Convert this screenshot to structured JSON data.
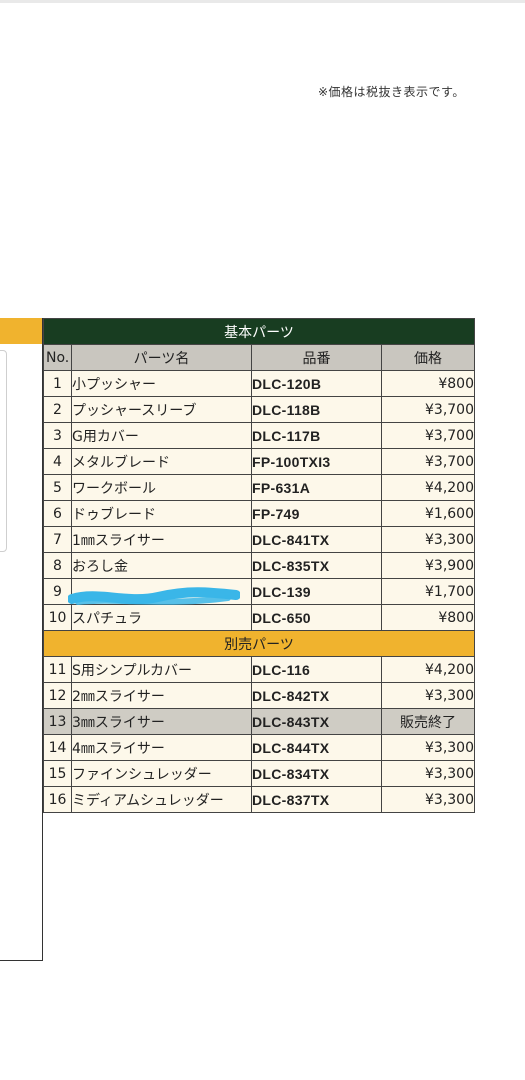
{
  "tax_note": "※価格は税抜き表示です。",
  "sections": {
    "basic": "基本パーツ",
    "optional": "別売パーツ"
  },
  "headers": {
    "no": "No.",
    "name": "パーツ名",
    "code": "品番",
    "price": "価格"
  },
  "basic_items": [
    {
      "no": "1",
      "name": "小プッシャー",
      "code": "DLC-120B",
      "price": "¥800"
    },
    {
      "no": "2",
      "name": "プッシャースリーブ",
      "code": "DLC-118B",
      "price": "¥3,700"
    },
    {
      "no": "3",
      "name": "G用カバー",
      "code": "DLC-117B",
      "price": "¥3,700"
    },
    {
      "no": "4",
      "name": "メタルブレード",
      "code": "FP-100TXI3",
      "price": "¥3,700"
    },
    {
      "no": "5",
      "name": "ワークボール",
      "code": "FP-631A",
      "price": "¥4,200"
    },
    {
      "no": "6",
      "name": "ドゥブレード",
      "code": "FP-749",
      "price": "¥1,600"
    },
    {
      "no": "7",
      "name": "1㎜スライサー",
      "code": "DLC-841TX",
      "price": "¥3,300"
    },
    {
      "no": "8",
      "name": "おろし金",
      "code": "DLC-835TX",
      "price": "¥3,900"
    },
    {
      "no": "9",
      "name": "",
      "code": "DLC-139",
      "price": "¥1,700"
    },
    {
      "no": "10",
      "name": "スパチュラ",
      "code": "DLC-650",
      "price": "¥800"
    }
  ],
  "optional_items": [
    {
      "no": "11",
      "name": "S用シンプルカバー",
      "code": "DLC-116",
      "price": "¥4,200"
    },
    {
      "no": "12",
      "name": "2㎜スライサー",
      "code": "DLC-842TX",
      "price": "¥3,300"
    },
    {
      "no": "13",
      "name": "3㎜スライサー",
      "code": "DLC-843TX",
      "price": "販売終了"
    },
    {
      "no": "14",
      "name": "4㎜スライサー",
      "code": "DLC-844TX",
      "price": "¥3,300"
    },
    {
      "no": "15",
      "name": "ファインシュレッダー",
      "code": "DLC-834TX",
      "price": "¥3,300"
    },
    {
      "no": "16",
      "name": "ミディアムシュレッダー",
      "code": "DLC-837TX",
      "price": "¥3,300"
    }
  ],
  "colors": {
    "section_green": "#183d21",
    "section_orange": "#f0b32e",
    "header_gray": "#c9c6bf",
    "row_cream": "#fdf8ea",
    "discontinued_gray": "#cfccc4",
    "scribble_blue": "#3ab6e8"
  }
}
